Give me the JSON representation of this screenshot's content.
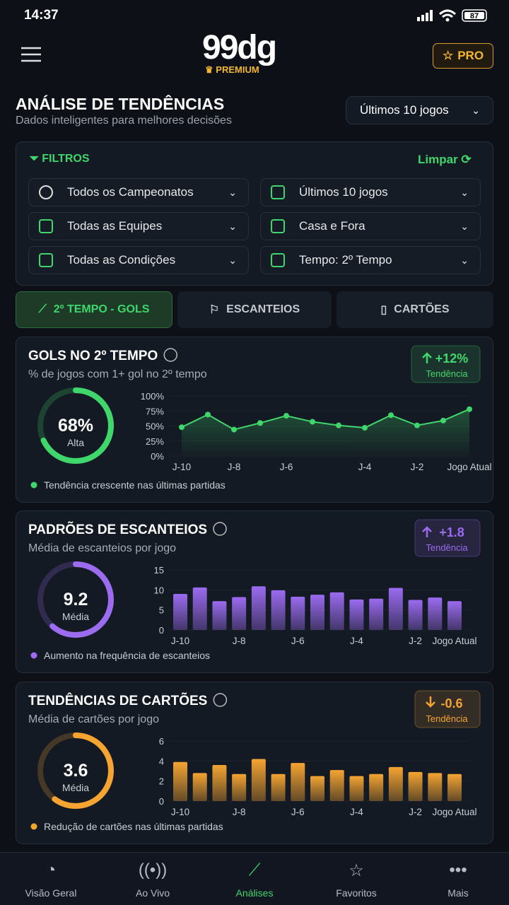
{
  "status": {
    "time": "14:37",
    "battery": "87"
  },
  "header": {
    "logo": "99dg",
    "badge": "PREMIUM",
    "pro": "PRO"
  },
  "page": {
    "title": "ANÁLISE DE TENDÊNCIAS",
    "subtitle": "Dados inteligentes para melhores decisões",
    "range": "Últimos 10 jogos"
  },
  "filters": {
    "title": "FILTROS",
    "clear": "Limpar",
    "items": [
      "Todos os Campeonatos",
      "Últimos 10 jogos",
      "Todas as Equipes",
      "Casa e Fora",
      "Todas as Condições",
      "Tempo: 2º Tempo"
    ]
  },
  "tabs": {
    "items": [
      "2º TEMPO - GOLS",
      "ESCANTEIOS",
      "CARTÕES"
    ],
    "active": 0
  },
  "chart_data": [
    {
      "type": "line",
      "title": "GOLS NO 2º TEMPO",
      "subtitle": "% de jogos com 1+ gol no 2º tempo",
      "color": "#3fd66b",
      "trend": {
        "value": 12,
        "label": "+12%",
        "caption": "Tendência"
      },
      "gauge": {
        "value": 68,
        "value_label": "68%",
        "label": "Alta"
      },
      "categories": [
        "J-10",
        null,
        "J-8",
        null,
        "J-6",
        null,
        null,
        "J-4",
        null,
        "J-2",
        null,
        "Jogo Atual"
      ],
      "values": [
        48,
        69,
        44,
        55,
        67,
        57,
        51,
        47,
        68,
        51,
        59,
        78
      ],
      "ylim": [
        0,
        100
      ],
      "yticks": [
        {
          "value": 0,
          "label": "0%"
        },
        {
          "value": 25,
          "label": "25%"
        },
        {
          "value": 50,
          "label": "50%"
        },
        {
          "value": 75,
          "label": "75%"
        },
        {
          "value": 100,
          "label": "100%"
        }
      ],
      "note": "Tendência crescente nas últimas partidas"
    },
    {
      "type": "bar",
      "title": "PADRÕES DE ESCANTEIOS",
      "subtitle": "Média de escanteios por jogo",
      "color": "#9b6bf0",
      "trend": {
        "value": 1.8,
        "label": "+1.8",
        "caption": "Tendência"
      },
      "gauge": {
        "value": 9.2,
        "label": "Média"
      },
      "categories": [
        "J-10",
        null,
        null,
        "J-8",
        null,
        null,
        "J-6",
        null,
        null,
        "J-4",
        null,
        null,
        "J-2",
        null,
        "Jogo Atual"
      ],
      "values": [
        9.0,
        10.6,
        7.2,
        8.2,
        10.9,
        9.9,
        8.3,
        8.8,
        9.4,
        7.6,
        7.8,
        10.5,
        7.5,
        8.1,
        7.2
      ],
      "ylim": [
        0,
        15
      ],
      "yticks": [
        0,
        5,
        10,
        15
      ],
      "note": "Aumento na frequência de escanteios"
    },
    {
      "type": "bar",
      "title": "TENDÊNCIAS DE CARTÕES",
      "subtitle": "Média de cartões por jogo",
      "color": "#f5a431",
      "trend": {
        "value": -0.6,
        "label": "-0.6",
        "caption": "Tendência"
      },
      "gauge": {
        "value": 3.6,
        "label": "Média"
      },
      "categories": [
        "J-10",
        null,
        null,
        "J-8",
        null,
        null,
        "J-6",
        null,
        null,
        "J-4",
        null,
        null,
        "J-2",
        null,
        "Jogo Atual"
      ],
      "values": [
        3.9,
        2.8,
        3.6,
        2.7,
        4.2,
        2.7,
        3.8,
        2.5,
        3.1,
        2.5,
        2.7,
        3.4,
        2.9,
        2.8,
        2.7
      ],
      "ylim": [
        0,
        6
      ],
      "yticks": [
        0,
        2,
        4,
        6
      ],
      "note": "Redução de cartões nas últimas partidas"
    }
  ],
  "nav": {
    "items": [
      "Visão Geral",
      "Ao Vivo",
      "Análises",
      "Favoritos",
      "Mais"
    ],
    "active": 2
  }
}
